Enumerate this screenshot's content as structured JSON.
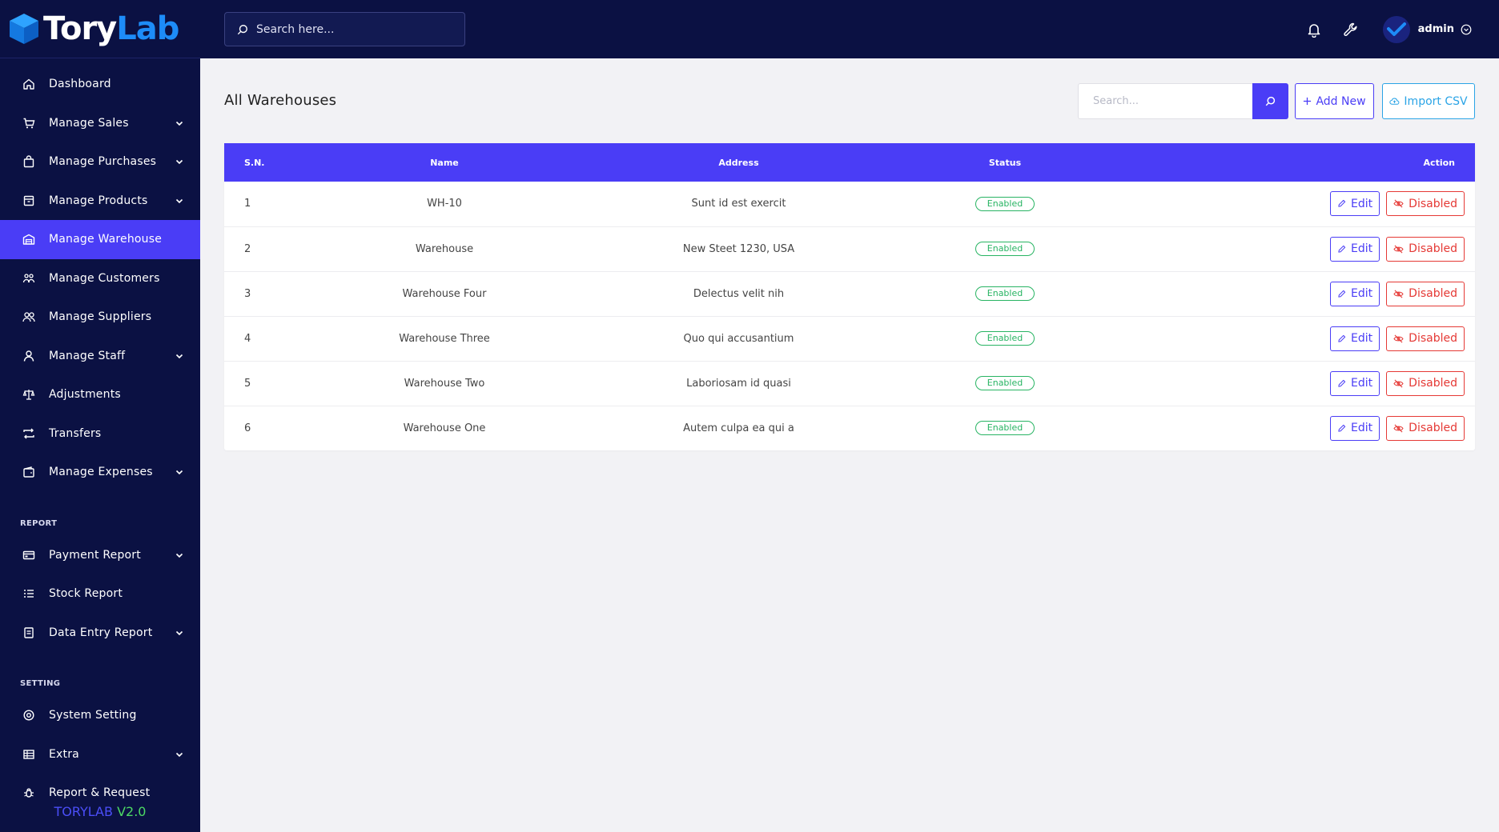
{
  "brand": {
    "name_part1": "Tory",
    "name_part2": "Lab",
    "logo_icon": "cube-icon"
  },
  "version": {
    "part1": "TORYLAB",
    "part2": "V2.0"
  },
  "topbar": {
    "search_placeholder": "Search here...",
    "user_name": "admin",
    "icons": [
      "bell-icon",
      "wrench-icon",
      "user-avatar",
      "chevron-down-circle-icon"
    ]
  },
  "sidebar": {
    "items": [
      {
        "label": "Dashboard",
        "icon": "home-icon",
        "has_submenu": false,
        "active": false
      },
      {
        "label": "Manage Sales",
        "icon": "cart-icon",
        "has_submenu": true,
        "active": false
      },
      {
        "label": "Manage Purchases",
        "icon": "bag-icon",
        "has_submenu": true,
        "active": false
      },
      {
        "label": "Manage Products",
        "icon": "box-icon",
        "has_submenu": true,
        "active": false
      },
      {
        "label": "Manage Warehouse",
        "icon": "warehouse-icon",
        "has_submenu": false,
        "active": true
      },
      {
        "label": "Manage Customers",
        "icon": "customers-icon",
        "has_submenu": false,
        "active": false
      },
      {
        "label": "Manage Suppliers",
        "icon": "suppliers-icon",
        "has_submenu": false,
        "active": false
      },
      {
        "label": "Manage Staff",
        "icon": "user-icon",
        "has_submenu": true,
        "active": false
      },
      {
        "label": "Adjustments",
        "icon": "scale-icon",
        "has_submenu": false,
        "active": false
      },
      {
        "label": "Transfers",
        "icon": "transfer-icon",
        "has_submenu": false,
        "active": false
      },
      {
        "label": "Manage Expenses",
        "icon": "wallet-icon",
        "has_submenu": true,
        "active": false
      }
    ],
    "report_section": "REPORT",
    "report_items": [
      {
        "label": "Payment Report",
        "icon": "payment-icon",
        "has_submenu": true
      },
      {
        "label": "Stock Report",
        "icon": "list-icon",
        "has_submenu": false
      },
      {
        "label": "Data Entry Report",
        "icon": "document-icon",
        "has_submenu": true
      }
    ],
    "setting_section": "SETTING",
    "setting_items": [
      {
        "label": "System Setting",
        "icon": "settings-icon",
        "has_submenu": false
      },
      {
        "label": "Extra",
        "icon": "table-icon",
        "has_submenu": true
      },
      {
        "label": "Report & Request",
        "icon": "bug-icon",
        "has_submenu": false
      }
    ]
  },
  "main": {
    "title": "All Warehouses",
    "search_placeholder": "Search...",
    "add_new_label": "Add New",
    "import_csv_label": "Import CSV"
  },
  "table": {
    "headers": {
      "sn": "S.N.",
      "name": "Name",
      "address": "Address",
      "status": "Status",
      "action": "Action"
    },
    "rows": [
      {
        "sn": "1",
        "name": "WH-10",
        "address": "Sunt id est exercit",
        "status": "Enabled",
        "edit": "Edit",
        "disable": "Disabled"
      },
      {
        "sn": "2",
        "name": "Warehouse",
        "address": "New Steet 1230, USA",
        "status": "Enabled",
        "edit": "Edit",
        "disable": "Disabled"
      },
      {
        "sn": "3",
        "name": "Warehouse Four",
        "address": "Delectus velit nih",
        "status": "Enabled",
        "edit": "Edit",
        "disable": "Disabled"
      },
      {
        "sn": "4",
        "name": "Warehouse Three",
        "address": "Quo qui accusantium",
        "status": "Enabled",
        "edit": "Edit",
        "disable": "Disabled"
      },
      {
        "sn": "5",
        "name": "Warehouse Two",
        "address": "Laboriosam id quasi",
        "status": "Enabled",
        "edit": "Edit",
        "disable": "Disabled"
      },
      {
        "sn": "6",
        "name": "Warehouse One",
        "address": "Autem culpa ea qui a",
        "status": "Enabled",
        "edit": "Edit",
        "disable": "Disabled"
      }
    ]
  },
  "colors": {
    "sidebar_bg": "#0b1143",
    "accent": "#4a3df6",
    "brand_blue": "#1d8cf8",
    "success": "#28b463",
    "danger": "#e53935",
    "info": "#2aa4e6"
  }
}
